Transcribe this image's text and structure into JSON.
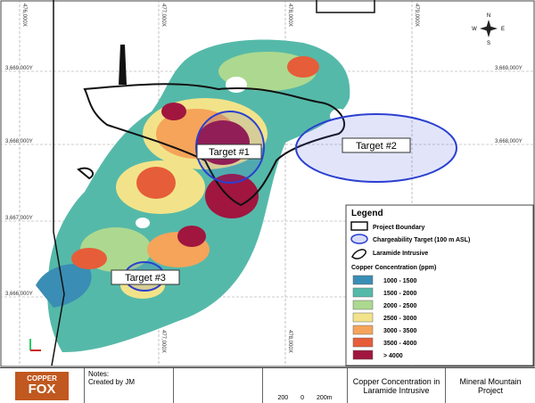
{
  "map": {
    "grid_labels": {
      "x": [
        "476,000X",
        "477,000X",
        "478,000X",
        "479,000X"
      ],
      "y": [
        "3,669,000Y",
        "3,668,000Y",
        "3,667,000Y",
        "3,666,000Y"
      ]
    },
    "compass": {
      "n": "N",
      "s": "S",
      "e": "E",
      "w": "W"
    },
    "targets": [
      "Target #1",
      "Target #2",
      "Target #3"
    ],
    "legend": {
      "title": "Legend",
      "items": [
        "Project Boundary",
        "Chargeability Target (100 m ASL)",
        "Laramide Intrusive"
      ],
      "concentration_title": "Copper Concentration (ppm)",
      "classes": [
        {
          "label": "1000 - 1500",
          "color": "#3a8db4"
        },
        {
          "label": "1500 - 2000",
          "color": "#55b9a9"
        },
        {
          "label": "2000 - 2500",
          "color": "#acd98f"
        },
        {
          "label": "2500 - 3000",
          "color": "#f2e38a"
        },
        {
          "label": "3000 - 3500",
          "color": "#f5a45a"
        },
        {
          "label": "3500 - 4000",
          "color": "#e65d39"
        },
        {
          "label": "> 4000",
          "color": "#a0163f"
        }
      ]
    }
  },
  "footer": {
    "logo_top": "COPPER",
    "logo_bottom": "FOX",
    "notes_label": "Notes:",
    "notes": "Created by JM",
    "scale": [
      "200",
      "0",
      "200m"
    ],
    "title": "Copper Concentration in Laramide Intrusive",
    "project": "Mineral Mountain Project"
  }
}
